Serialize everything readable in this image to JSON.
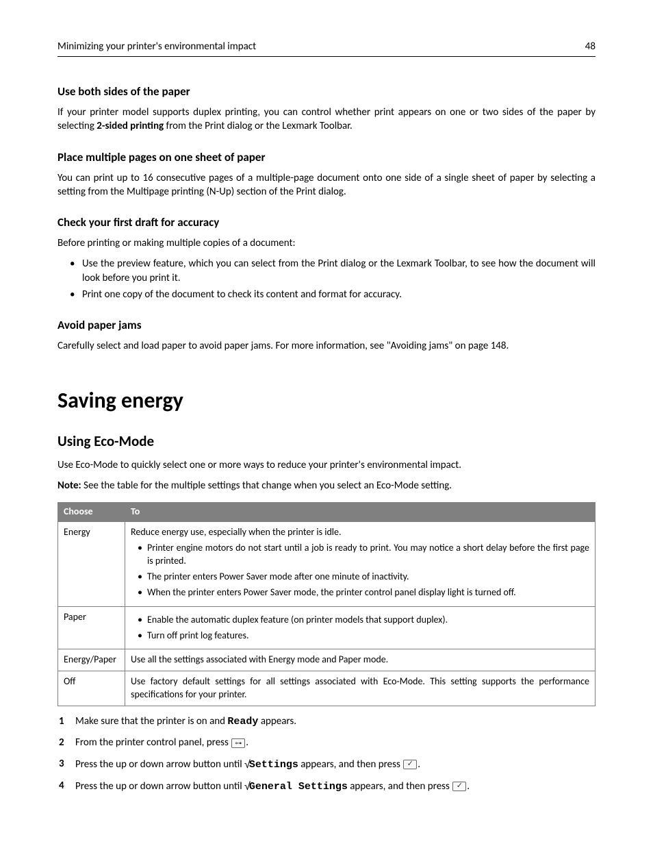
{
  "header": {
    "title": "Minimizing your printer's environmental impact",
    "page_number": "48"
  },
  "sections": {
    "both_sides": {
      "heading": "Use both sides of the paper",
      "p1_a": "If your printer model supports duplex printing, you can control whether print appears on one or two sides of the paper by selecting ",
      "p1_bold": "2-sided printing",
      "p1_b": " from the Print dialog or the Lexmark Toolbar."
    },
    "multi_pages": {
      "heading": "Place multiple pages on one sheet of paper",
      "p1": "You can print up to 16 consecutive pages of a multiple-page document onto one side of a single sheet of paper by selecting a setting from the Multipage printing (N-Up) section of the Print dialog."
    },
    "first_draft": {
      "heading": "Check your first draft for accuracy",
      "p1": "Before printing or making multiple copies of a document:",
      "b1": "Use the preview feature, which you can select from the Print dialog or the Lexmark Toolbar, to see how the document will look before you print it.",
      "b2": "Print one copy of the document to check its content and format for accuracy."
    },
    "avoid_jams": {
      "heading": "Avoid paper jams",
      "p1": "Carefully select and load paper to avoid paper jams. For more information, see \"Avoiding jams\" on page 148."
    }
  },
  "saving_energy": {
    "heading": "Saving energy",
    "eco": {
      "heading": "Using Eco-Mode",
      "p1": "Use Eco-Mode to quickly select one or more ways to reduce your printer's environmental impact.",
      "note_label": "Note:",
      "note_text": " See the table for the multiple settings that change when you select an Eco-Mode setting."
    }
  },
  "table": {
    "headers": {
      "c1": "Choose",
      "c2": "To"
    },
    "rows": {
      "energy": {
        "label": "Energy",
        "lead": "Reduce energy use, especially when the printer is idle.",
        "b1": "Printer engine motors do not start until a job is ready to print. You may notice a short delay before the first page is printed.",
        "b2": "The printer enters Power Saver mode after one minute of inactivity.",
        "b3": "When the printer enters Power Saver mode, the printer control panel display light is turned off."
      },
      "paper": {
        "label": "Paper",
        "b1": "Enable the automatic duplex feature (on printer models that support duplex).",
        "b2": "Turn off print log features."
      },
      "energy_paper": {
        "label": "Energy/Paper",
        "text": "Use all the settings associated with Energy mode and Paper mode."
      },
      "off": {
        "label": "Off",
        "text": "Use factory default settings for all settings associated with Eco-Mode. This setting supports the performance specifications for your printer."
      }
    }
  },
  "steps": {
    "s1_a": "Make sure that the printer is on and ",
    "s1_mono": "Ready",
    "s1_b": " appears.",
    "s2_a": "From the printer control panel, press ",
    "s2_b": ".",
    "s3_a": "Press the up or down arrow button until ",
    "s3_check": "√",
    "s3_mono": "Settings",
    "s3_b": " appears, and then press ",
    "s3_c": ".",
    "s4_a": "Press the up or down arrow button until ",
    "s4_check": "√",
    "s4_mono": "General Settings",
    "s4_b": " appears, and then press ",
    "s4_c": "."
  }
}
